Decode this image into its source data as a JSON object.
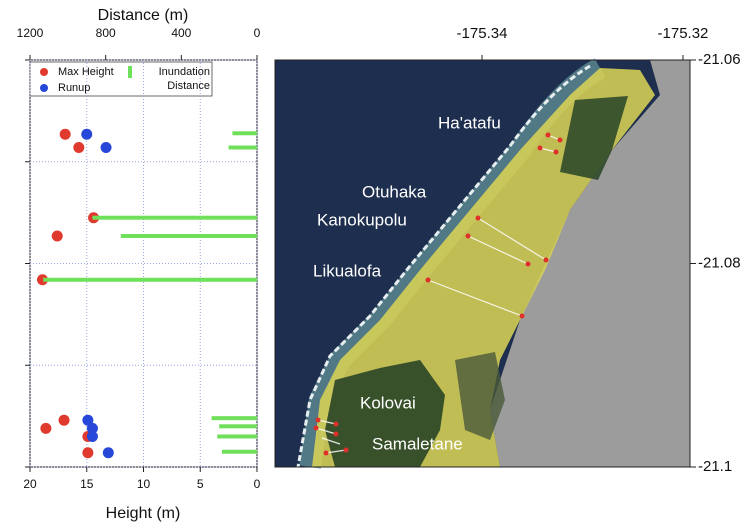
{
  "chart_data": [
    {
      "type": "scatter",
      "xlabel": "Height (m)",
      "xlim": [
        20,
        0
      ],
      "xticks": [
        20,
        15,
        10,
        5,
        0
      ],
      "x2label": "Distance (m)",
      "x2lim": [
        1200,
        0
      ],
      "x2ticks": [
        1200,
        800,
        400,
        0
      ],
      "ylim": [
        -21.1,
        -21.06
      ],
      "yticks": [
        -21.1,
        -21.09,
        -21.08,
        -21.07,
        -21.06
      ],
      "ytick_labels": false,
      "grid": true,
      "legend": "upper left",
      "series": [
        {
          "name": "Max Height",
          "type": "scatter",
          "color": "#e03a2f",
          "x": [
            16.9,
            15.7,
            14.4,
            17.6,
            18.9,
            17.0,
            18.6,
            14.9,
            14.9
          ],
          "y": [
            -21.0673,
            -21.0686,
            -21.0755,
            -21.0773,
            -21.0816,
            -21.0954,
            -21.0962,
            -21.097,
            -21.0986
          ]
        },
        {
          "name": "Runup",
          "type": "scatter",
          "color": "#2747d8",
          "x": [
            15.0,
            13.3,
            14.9,
            14.5,
            14.5,
            13.1
          ],
          "y": [
            -21.0673,
            -21.0686,
            -21.0954,
            -21.0962,
            -21.097,
            -21.0986
          ]
        },
        {
          "name": "Inundation Distance",
          "type": "bar",
          "axis": "x2",
          "color": "#6fe05a",
          "values": [
            130,
            150,
            870,
            720,
            1130,
            240,
            200,
            210,
            185
          ],
          "y": [
            -21.0672,
            -21.0686,
            -21.0755,
            -21.0773,
            -21.0816,
            -21.0952,
            -21.096,
            -21.097,
            -21.0985
          ]
        }
      ]
    },
    {
      "type": "map",
      "xlim": [
        -175.3606,
        -175.3193
      ],
      "xticks": [
        -175.34,
        -175.32
      ],
      "ylim": [
        -21.1,
        -21.06
      ],
      "yticks": [
        -21.1,
        -21.08,
        -21.06
      ],
      "labels": [
        "Ha'atafu",
        "Otuhaka",
        "Kanokupolu",
        "Likualofa",
        "Kolovai",
        "Samaletane"
      ]
    }
  ]
}
